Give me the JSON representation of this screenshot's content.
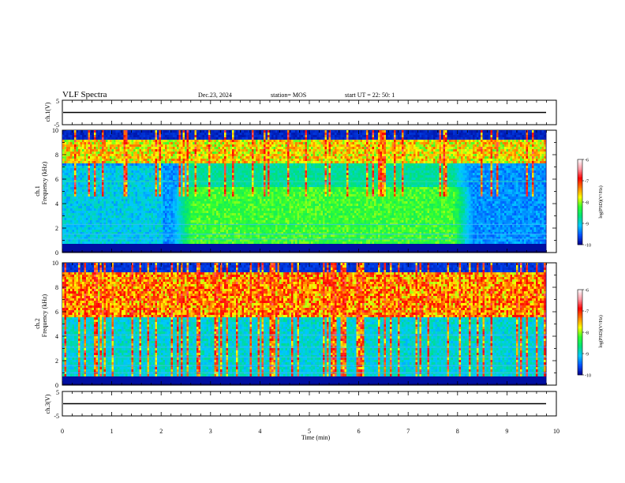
{
  "header": {
    "title": "VLF Spectra",
    "date": "Dec.23, 2024",
    "station": "station= MOS",
    "start": "start  UT =   22: 50: 1"
  },
  "chart_data": [
    {
      "type": "line",
      "name": "ch1-waveform",
      "ylabel": "ch.1(V)",
      "ylim": [
        -5,
        5
      ],
      "yticks": [
        "5",
        "-5"
      ],
      "x": [
        0,
        9.8
      ],
      "values": [
        -1.5,
        -1.5
      ]
    },
    {
      "type": "heatmap",
      "name": "ch1-spectrogram",
      "ylabel": "ch.1",
      "ylabel2": "Frequency (kHz)",
      "ylim": [
        0,
        10
      ],
      "yticks": [
        "0",
        "2",
        "4",
        "6",
        "8",
        "10"
      ],
      "xlim": [
        0,
        10
      ],
      "colorbar": {
        "label": "log(PSD)(V²/Hz)",
        "ticks": [
          "-6",
          "-7",
          "-8",
          "-9",
          "-10"
        ],
        "range": [
          -10,
          -6
        ]
      },
      "colormap": [
        "#00008c",
        "#0050ff",
        "#00c8ff",
        "#00e27a",
        "#30ff30",
        "#ffff00",
        "#ff8000",
        "#ff0000",
        "#ff9aa6",
        "#ffffff"
      ]
    },
    {
      "type": "heatmap",
      "name": "ch2-spectrogram",
      "ylabel": "ch.2",
      "ylabel2": "Frequency (kHz)",
      "ylim": [
        0,
        10
      ],
      "yticks": [
        "0",
        "2",
        "4",
        "6",
        "8",
        "10"
      ],
      "xlim": [
        0,
        10
      ],
      "colorbar": {
        "label": "log(PSD)(V²/Hz)",
        "ticks": [
          "-6",
          "-7",
          "-8",
          "-9",
          "-10"
        ],
        "range": [
          -10,
          -6
        ]
      }
    },
    {
      "type": "line",
      "name": "ch3-waveform",
      "ylabel": "ch.3(V)",
      "ylim": [
        -5,
        5
      ],
      "yticks": [
        "5",
        "-5"
      ],
      "x": [
        0,
        9.8
      ],
      "values": [
        -1.5,
        -1.5
      ]
    }
  ],
  "xaxis": {
    "label": "Time (min)",
    "ticks": [
      "0",
      "1",
      "2",
      "3",
      "4",
      "5",
      "6",
      "7",
      "8",
      "9",
      "10"
    ],
    "range": [
      0,
      10
    ]
  }
}
